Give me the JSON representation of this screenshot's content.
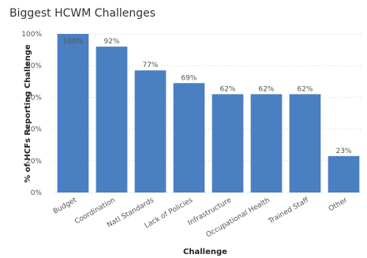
{
  "chart_data": {
    "type": "bar",
    "title": "Biggest HCWM Challenges",
    "xlabel": "Challenge",
    "ylabel": "% of HCFs Reporting Challenge",
    "categories": [
      "Budget",
      "Coordination",
      "Natl Standards",
      "Lack of Policies",
      "Infrastructure",
      "Occupational Health",
      "Trained Staff",
      "Other"
    ],
    "values": [
      100,
      92,
      77,
      69,
      62,
      62,
      62,
      23
    ],
    "data_labels": [
      "100%",
      "92%",
      "77%",
      "69%",
      "62%",
      "62%",
      "62%",
      "23%"
    ],
    "y_ticks": [
      "0%",
      "20%",
      "40%",
      "60%",
      "80%",
      "100%"
    ],
    "ylim": [
      0,
      100
    ],
    "grid": "horizontal dotted",
    "legend": "none",
    "bar_color": "#4a7fc1",
    "label_inside_color": "#ffffff"
  }
}
